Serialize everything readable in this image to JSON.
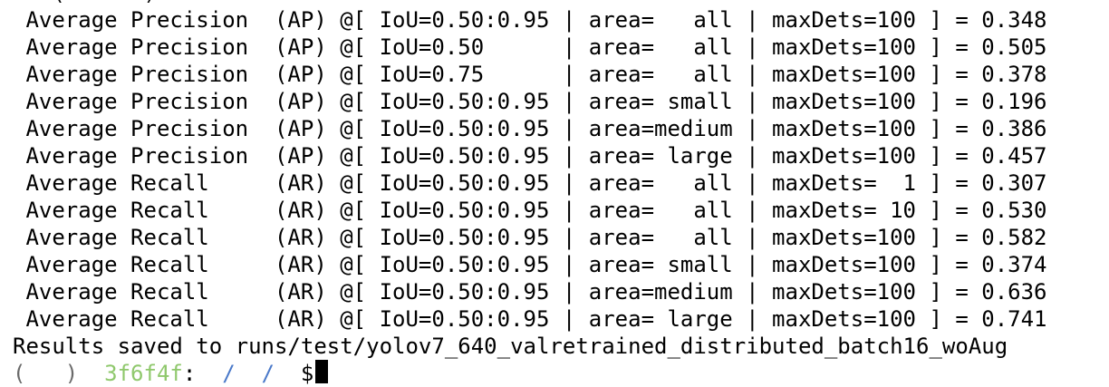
{
  "terminal": {
    "cut_top_line": " . (  . . )  .",
    "metrics": [
      " Average Precision  (AP) @[ IoU=0.50:0.95 | area=   all | maxDets=100 ] = 0.348",
      " Average Precision  (AP) @[ IoU=0.50      | area=   all | maxDets=100 ] = 0.505",
      " Average Precision  (AP) @[ IoU=0.75      | area=   all | maxDets=100 ] = 0.378",
      " Average Precision  (AP) @[ IoU=0.50:0.95 | area= small | maxDets=100 ] = 0.196",
      " Average Precision  (AP) @[ IoU=0.50:0.95 | area=medium | maxDets=100 ] = 0.386",
      " Average Precision  (AP) @[ IoU=0.50:0.95 | area= large | maxDets=100 ] = 0.457",
      " Average Recall     (AR) @[ IoU=0.50:0.95 | area=   all | maxDets=  1 ] = 0.307",
      " Average Recall     (AR) @[ IoU=0.50:0.95 | area=   all | maxDets= 10 ] = 0.530",
      " Average Recall     (AR) @[ IoU=0.50:0.95 | area=   all | maxDets=100 ] = 0.582",
      " Average Recall     (AR) @[ IoU=0.50:0.95 | area= small | maxDets=100 ] = 0.374",
      " Average Recall     (AR) @[ IoU=0.50:0.95 | area=medium | maxDets=100 ] = 0.636",
      " Average Recall     (AR) @[ IoU=0.50:0.95 | area= large | maxDets=100 ] = 0.741"
    ],
    "results_line": "Results saved to runs/test/yolov7_640_valretrained_distributed_batch16_woAug",
    "prompt": {
      "user": "(   )",
      "host": "  3f6f4f",
      "sep": ":",
      "path": "  /  /  ",
      "symbol": "$"
    }
  },
  "colors": {
    "background": "#ffffff",
    "text": "#000000",
    "prompt_host": "#8fc86c",
    "prompt_path": "#4a79c9"
  }
}
